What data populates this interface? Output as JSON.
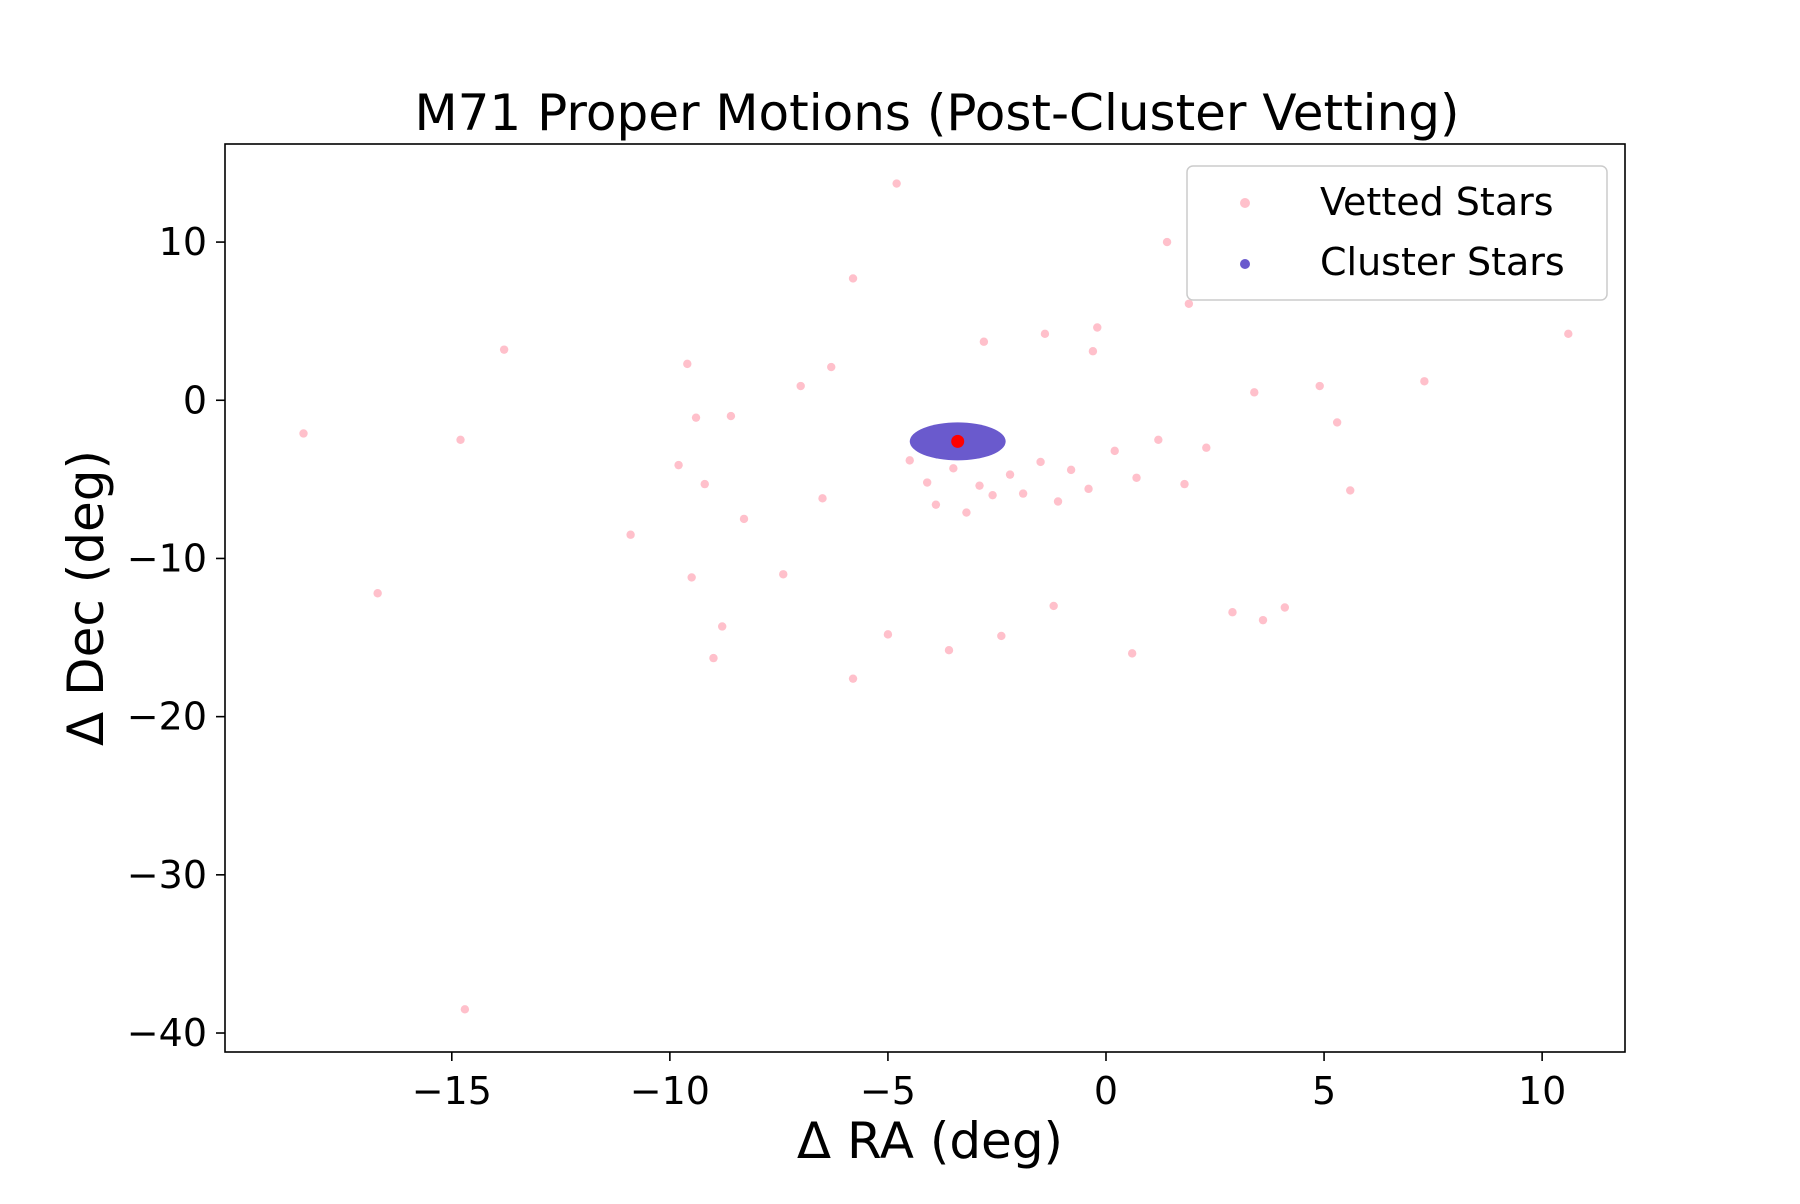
{
  "chart_data": {
    "type": "scatter",
    "title": "M71 Proper Motions (Post-Cluster Vetting)",
    "xlabel": "Δ RA (deg)",
    "ylabel": "Δ Dec (deg)",
    "xlim": [
      -20.2,
      11.9
    ],
    "ylim": [
      -41.2,
      16.2
    ],
    "xticks": [
      -15,
      -10,
      -5,
      0,
      5,
      10
    ],
    "yticks": [
      10,
      0,
      -10,
      -20,
      -30,
      -40
    ],
    "xtick_labels": [
      "−15",
      "−10",
      "−5",
      "0",
      "5",
      "10"
    ],
    "ytick_labels": [
      "10",
      "0",
      "−10",
      "−20",
      "−30",
      "−40"
    ],
    "grid": false,
    "legend_position": "top-right",
    "series": [
      {
        "name": "Vetted Stars",
        "color": "#ffc0cb",
        "marker": "circle",
        "points": [
          [
            -18.4,
            -2.1
          ],
          [
            -16.7,
            -12.2
          ],
          [
            -14.8,
            -2.5
          ],
          [
            -14.7,
            -38.5
          ],
          [
            -13.8,
            3.2
          ],
          [
            -10.9,
            -8.5
          ],
          [
            -9.8,
            -4.1
          ],
          [
            -9.6,
            2.3
          ],
          [
            -9.5,
            -11.2
          ],
          [
            -9.4,
            -1.1
          ],
          [
            -9.2,
            -5.3
          ],
          [
            -9.0,
            -16.3
          ],
          [
            -8.8,
            -14.3
          ],
          [
            -8.6,
            -1.0
          ],
          [
            -8.3,
            -7.5
          ],
          [
            -7.4,
            -11.0
          ],
          [
            -7.0,
            0.9
          ],
          [
            -6.5,
            -6.2
          ],
          [
            -6.3,
            2.1
          ],
          [
            -5.8,
            7.7
          ],
          [
            -5.8,
            -17.6
          ],
          [
            -5.0,
            -14.8
          ],
          [
            -4.8,
            13.7
          ],
          [
            -3.6,
            -15.8
          ],
          [
            -2.8,
            3.7
          ],
          [
            -2.4,
            -14.9
          ],
          [
            -1.4,
            4.2
          ],
          [
            -1.2,
            -13.0
          ],
          [
            -0.3,
            3.1
          ],
          [
            -0.2,
            4.6
          ],
          [
            0.6,
            -16.0
          ],
          [
            1.4,
            10.0
          ],
          [
            1.9,
            6.1
          ],
          [
            2.9,
            -13.4
          ],
          [
            3.4,
            0.5
          ],
          [
            3.6,
            -13.9
          ],
          [
            4.1,
            -13.1
          ],
          [
            4.9,
            0.9
          ],
          [
            5.3,
            -1.4
          ],
          [
            5.6,
            -5.7
          ],
          [
            7.3,
            1.2
          ],
          [
            10.6,
            4.2
          ],
          [
            -4.5,
            -3.8
          ],
          [
            -4.1,
            -5.2
          ],
          [
            -3.9,
            -6.6
          ],
          [
            -3.5,
            -4.3
          ],
          [
            -3.2,
            -7.1
          ],
          [
            -2.9,
            -5.4
          ],
          [
            -2.6,
            -6.0
          ],
          [
            -2.2,
            -4.7
          ],
          [
            -1.9,
            -5.9
          ],
          [
            -1.5,
            -3.9
          ],
          [
            -1.1,
            -6.4
          ],
          [
            -0.8,
            -4.4
          ],
          [
            -0.4,
            -5.6
          ],
          [
            0.2,
            -3.2
          ],
          [
            0.7,
            -4.9
          ],
          [
            1.2,
            -2.5
          ],
          [
            1.8,
            -5.3
          ],
          [
            2.3,
            -3.0
          ]
        ]
      },
      {
        "name": "Cluster Stars",
        "color": "#6a5acd",
        "marker": "circle",
        "center": [
          -3.4,
          -2.6
        ],
        "radius": [
          1.1,
          1.2
        ]
      }
    ],
    "cluster_center_marker": {
      "x": -3.4,
      "y": -2.6,
      "color": "#ff0000"
    }
  }
}
